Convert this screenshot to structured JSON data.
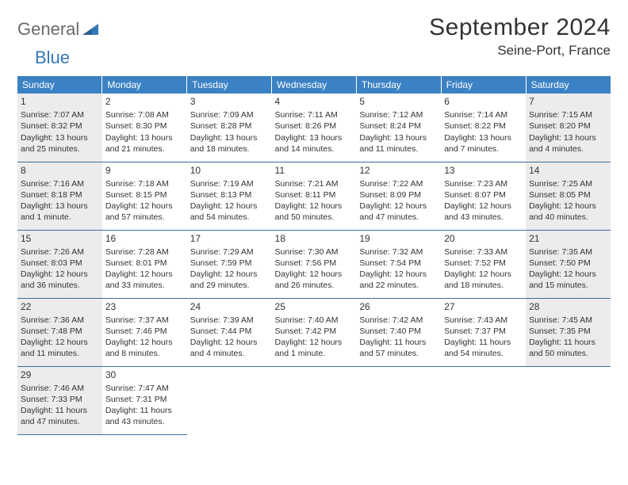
{
  "brand": {
    "part1": "General",
    "part2": "Blue"
  },
  "title": "September 2024",
  "location": "Seine-Port, France",
  "colors": {
    "header_bg": "#3b82c4",
    "header_fg": "#ffffff",
    "shaded_bg": "#ececec",
    "rule": "#3b6ea0",
    "text": "#333333",
    "logo_gray": "#6a6a6a",
    "logo_blue": "#3577b8"
  },
  "day_headers": [
    "Sunday",
    "Monday",
    "Tuesday",
    "Wednesday",
    "Thursday",
    "Friday",
    "Saturday"
  ],
  "weeks": [
    [
      {
        "n": "1",
        "shaded": true,
        "sr": "7:07 AM",
        "ss": "8:32 PM",
        "dl": "13 hours and 25 minutes."
      },
      {
        "n": "2",
        "sr": "7:08 AM",
        "ss": "8:30 PM",
        "dl": "13 hours and 21 minutes."
      },
      {
        "n": "3",
        "sr": "7:09 AM",
        "ss": "8:28 PM",
        "dl": "13 hours and 18 minutes."
      },
      {
        "n": "4",
        "sr": "7:11 AM",
        "ss": "8:26 PM",
        "dl": "13 hours and 14 minutes."
      },
      {
        "n": "5",
        "sr": "7:12 AM",
        "ss": "8:24 PM",
        "dl": "13 hours and 11 minutes."
      },
      {
        "n": "6",
        "sr": "7:14 AM",
        "ss": "8:22 PM",
        "dl": "13 hours and 7 minutes."
      },
      {
        "n": "7",
        "shaded": true,
        "sr": "7:15 AM",
        "ss": "8:20 PM",
        "dl": "13 hours and 4 minutes."
      }
    ],
    [
      {
        "n": "8",
        "shaded": true,
        "sr": "7:16 AM",
        "ss": "8:18 PM",
        "dl": "13 hours and 1 minute."
      },
      {
        "n": "9",
        "sr": "7:18 AM",
        "ss": "8:15 PM",
        "dl": "12 hours and 57 minutes."
      },
      {
        "n": "10",
        "sr": "7:19 AM",
        "ss": "8:13 PM",
        "dl": "12 hours and 54 minutes."
      },
      {
        "n": "11",
        "sr": "7:21 AM",
        "ss": "8:11 PM",
        "dl": "12 hours and 50 minutes."
      },
      {
        "n": "12",
        "sr": "7:22 AM",
        "ss": "8:09 PM",
        "dl": "12 hours and 47 minutes."
      },
      {
        "n": "13",
        "sr": "7:23 AM",
        "ss": "8:07 PM",
        "dl": "12 hours and 43 minutes."
      },
      {
        "n": "14",
        "shaded": true,
        "sr": "7:25 AM",
        "ss": "8:05 PM",
        "dl": "12 hours and 40 minutes."
      }
    ],
    [
      {
        "n": "15",
        "shaded": true,
        "sr": "7:26 AM",
        "ss": "8:03 PM",
        "dl": "12 hours and 36 minutes."
      },
      {
        "n": "16",
        "sr": "7:28 AM",
        "ss": "8:01 PM",
        "dl": "12 hours and 33 minutes."
      },
      {
        "n": "17",
        "sr": "7:29 AM",
        "ss": "7:59 PM",
        "dl": "12 hours and 29 minutes."
      },
      {
        "n": "18",
        "sr": "7:30 AM",
        "ss": "7:56 PM",
        "dl": "12 hours and 26 minutes."
      },
      {
        "n": "19",
        "sr": "7:32 AM",
        "ss": "7:54 PM",
        "dl": "12 hours and 22 minutes."
      },
      {
        "n": "20",
        "sr": "7:33 AM",
        "ss": "7:52 PM",
        "dl": "12 hours and 18 minutes."
      },
      {
        "n": "21",
        "shaded": true,
        "sr": "7:35 AM",
        "ss": "7:50 PM",
        "dl": "12 hours and 15 minutes."
      }
    ],
    [
      {
        "n": "22",
        "shaded": true,
        "sr": "7:36 AM",
        "ss": "7:48 PM",
        "dl": "12 hours and 11 minutes."
      },
      {
        "n": "23",
        "sr": "7:37 AM",
        "ss": "7:46 PM",
        "dl": "12 hours and 8 minutes."
      },
      {
        "n": "24",
        "sr": "7:39 AM",
        "ss": "7:44 PM",
        "dl": "12 hours and 4 minutes."
      },
      {
        "n": "25",
        "sr": "7:40 AM",
        "ss": "7:42 PM",
        "dl": "12 hours and 1 minute."
      },
      {
        "n": "26",
        "sr": "7:42 AM",
        "ss": "7:40 PM",
        "dl": "11 hours and 57 minutes."
      },
      {
        "n": "27",
        "sr": "7:43 AM",
        "ss": "7:37 PM",
        "dl": "11 hours and 54 minutes."
      },
      {
        "n": "28",
        "shaded": true,
        "sr": "7:45 AM",
        "ss": "7:35 PM",
        "dl": "11 hours and 50 minutes."
      }
    ],
    [
      {
        "n": "29",
        "shaded": true,
        "sr": "7:46 AM",
        "ss": "7:33 PM",
        "dl": "11 hours and 47 minutes."
      },
      {
        "n": "30",
        "sr": "7:47 AM",
        "ss": "7:31 PM",
        "dl": "11 hours and 43 minutes."
      },
      {
        "empty": true
      },
      {
        "empty": true
      },
      {
        "empty": true
      },
      {
        "empty": true
      },
      {
        "empty": true
      }
    ]
  ],
  "labels": {
    "sunrise": "Sunrise:",
    "sunset": "Sunset:",
    "daylight": "Daylight:"
  }
}
